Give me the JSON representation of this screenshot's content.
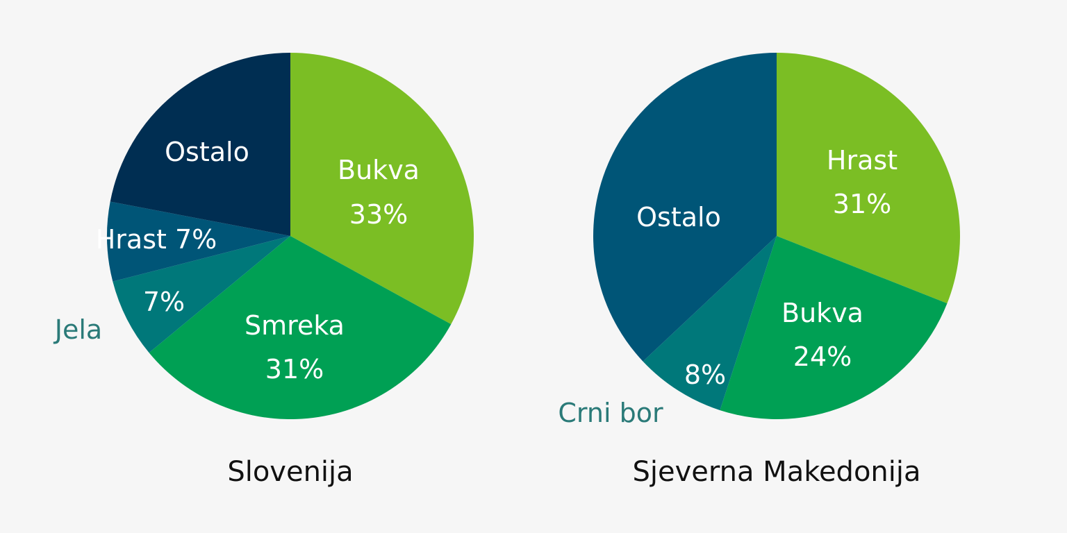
{
  "chart_data": [
    {
      "type": "pie",
      "title": "Slovenija",
      "start_angle_deg": 0,
      "slices": [
        {
          "name": "Bukva",
          "value": 33,
          "label": "33%",
          "color": "#7bbe24"
        },
        {
          "name": "Smreka",
          "value": 31,
          "label": "31%",
          "color": "#00a054"
        },
        {
          "name": "Jela",
          "value": 7,
          "label": "7%",
          "color": "#00787a"
        },
        {
          "name": "Hrast",
          "value": 7,
          "label": "7%",
          "color": "#005577"
        },
        {
          "name": "Ostalo",
          "value": 22,
          "label": "",
          "color": "#002e52"
        }
      ]
    },
    {
      "type": "pie",
      "title": "Sjeverna Makedonija",
      "start_angle_deg": 0,
      "slices": [
        {
          "name": "Hrast",
          "value": 31,
          "label": "31%",
          "color": "#7bbe24"
        },
        {
          "name": "Bukva",
          "value": 24,
          "label": "24%",
          "color": "#00a054"
        },
        {
          "name": "Crni bor",
          "value": 8,
          "label": "8%",
          "color": "#00787a"
        },
        {
          "name": "Ostalo",
          "value": 37,
          "label": "",
          "color": "#005577"
        }
      ]
    }
  ],
  "colors": {
    "background": "#f6f6f6",
    "outside_label": "#2a7a78",
    "title": "#111111",
    "slice_text": "#ffffff"
  }
}
